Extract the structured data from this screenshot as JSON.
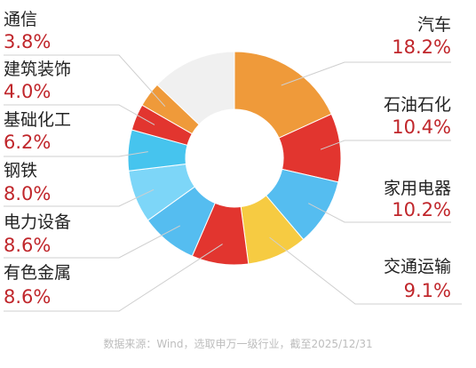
{
  "chart_data": {
    "type": "pie",
    "donut": true,
    "slices": [
      {
        "label": "汽车",
        "value": 18.2,
        "value_text": "18.2%",
        "color": "#ef9a3a"
      },
      {
        "label": "石油石化",
        "value": 10.4,
        "value_text": "10.4%",
        "color": "#e2352f"
      },
      {
        "label": "家用电器",
        "value": 10.2,
        "value_text": "10.2%",
        "color": "#55bdf0"
      },
      {
        "label": "交通运输",
        "value": 9.1,
        "value_text": "9.1%",
        "color": "#f6cb42"
      },
      {
        "label": "有色金属",
        "value": 8.6,
        "value_text": "8.6%",
        "color": "#e2352f"
      },
      {
        "label": "电力设备",
        "value": 8.6,
        "value_text": "8.6%",
        "color": "#55bdf0"
      },
      {
        "label": "钢铁",
        "value": 8.0,
        "value_text": "8.0%",
        "color": "#7dd6f8"
      },
      {
        "label": "基础化工",
        "value": 6.2,
        "value_text": "6.2%",
        "color": "#46c4ee"
      },
      {
        "label": "建筑装饰",
        "value": 4.0,
        "value_text": "4.0%",
        "color": "#e2352f"
      },
      {
        "label": "通信",
        "value": 3.8,
        "value_text": "3.8%",
        "color": "#ef9a3a"
      },
      {
        "label": "",
        "value": 12.9,
        "value_text": "",
        "color": "#f0f0f0"
      }
    ],
    "value_color": "#c0262b",
    "leader_color": "#cfcfcf"
  },
  "source_note": "数据来源：Wind，选取申万一级行业，截至2025/12/31"
}
